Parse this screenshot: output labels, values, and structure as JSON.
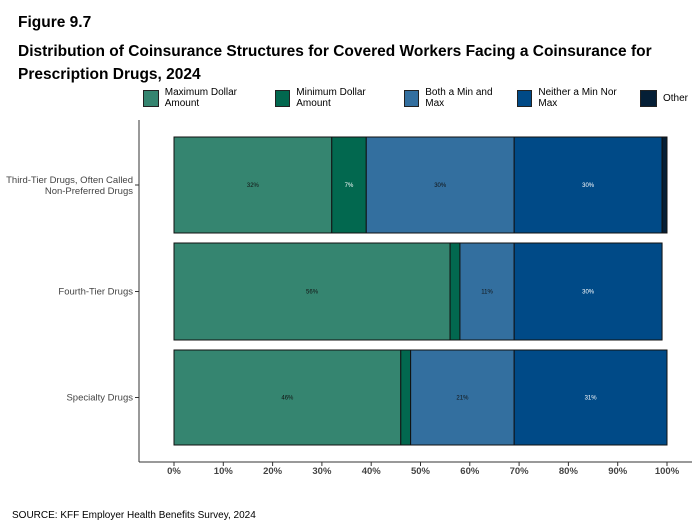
{
  "figure_label": "Figure 9.7",
  "title": "Distribution of Coinsurance Structures for Covered Workers Facing a Coinsurance for Prescription Drugs, 2024",
  "source": "SOURCE: KFF Employer Health Benefits Survey, 2024",
  "chart_data": {
    "type": "bar",
    "orientation": "horizontal",
    "stacked": true,
    "categories": [
      "Third-Tier Drugs, Often Called Non-Preferred Drugs",
      "Fourth-Tier Drugs",
      "Specialty Drugs"
    ],
    "series": [
      {
        "name": "Maximum Dollar Amount",
        "color": "#358570",
        "values": [
          32,
          56,
          46
        ],
        "labels": [
          "32%",
          "56%",
          "46%"
        ]
      },
      {
        "name": "Minimum Dollar Amount",
        "color": "#02684F",
        "values": [
          7,
          2,
          2
        ],
        "labels": [
          "7%",
          "",
          ""
        ]
      },
      {
        "name": "Both a Min and Max",
        "color": "#336F9F",
        "values": [
          30,
          11,
          21
        ],
        "labels": [
          "30%",
          "11%",
          "21%"
        ]
      },
      {
        "name": "Neither a Min Nor Max",
        "color": "#004A87",
        "values": [
          30,
          30,
          31
        ],
        "labels": [
          "30%",
          "30%",
          "31%"
        ]
      },
      {
        "name": "Other",
        "color": "#051F36",
        "values": [
          1,
          0,
          0
        ],
        "labels": [
          "",
          "",
          ""
        ]
      }
    ],
    "xlim": [
      0,
      100
    ],
    "x_ticks": [
      "0%",
      "10%",
      "20%",
      "30%",
      "40%",
      "50%",
      "60%",
      "70%",
      "80%",
      "90%",
      "100%"
    ],
    "legend_position": "top",
    "grid": false
  }
}
